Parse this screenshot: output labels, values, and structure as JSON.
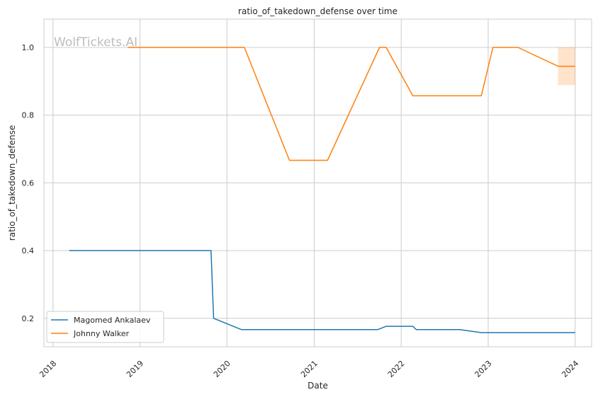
{
  "chart_data": {
    "type": "line",
    "title": "ratio_of_takedown_defense over time",
    "xlabel": "Date",
    "ylabel": "ratio_of_takedown_defense",
    "watermark": "WolfTickets.AI",
    "xlim": [
      "2017-11-24",
      "2024-03-10"
    ],
    "ylim": [
      0.116,
      1.0836
    ],
    "x_ticks": [
      "2018",
      "2019",
      "2020",
      "2021",
      "2022",
      "2023",
      "2024"
    ],
    "y_ticks": [
      "0.2",
      "0.4",
      "0.6",
      "0.8",
      "1.0"
    ],
    "grid": true,
    "legend": "lower-left",
    "series": [
      {
        "name": "Magomed Ankalaev",
        "color": "#1f77b4",
        "points": [
          [
            "2018-03-10",
            0.4
          ],
          [
            "2019-10-26",
            0.4
          ],
          [
            "2019-11-06",
            0.2
          ],
          [
            "2020-03-01",
            0.1667
          ],
          [
            "2021-09-25",
            0.1667
          ],
          [
            "2021-10-30",
            0.1765
          ],
          [
            "2022-02-19",
            0.1765
          ],
          [
            "2022-03-05",
            0.1667
          ],
          [
            "2022-09-03",
            0.1667
          ],
          [
            "2022-12-03",
            0.1579
          ],
          [
            "2024-01-01",
            0.1579
          ]
        ]
      },
      {
        "name": "Johnny Walker",
        "color": "#ff7f0e",
        "points": [
          [
            "2018-11-11",
            1.0
          ],
          [
            "2020-03-14",
            1.0
          ],
          [
            "2020-09-19",
            0.6667
          ],
          [
            "2021-02-26",
            0.6667
          ],
          [
            "2021-10-02",
            1.0
          ],
          [
            "2021-10-30",
            1.0
          ],
          [
            "2022-02-19",
            0.8571
          ],
          [
            "2022-12-03",
            0.8571
          ],
          [
            "2023-01-21",
            1.0
          ],
          [
            "2023-05-06",
            1.0
          ],
          [
            "2023-10-21",
            0.9444
          ],
          [
            "2024-01-01",
            0.9444
          ]
        ],
        "band": {
          "start": "2023-10-21",
          "end": "2024-01-01",
          "lower": 0.8889,
          "upper": 1.0
        }
      }
    ]
  }
}
